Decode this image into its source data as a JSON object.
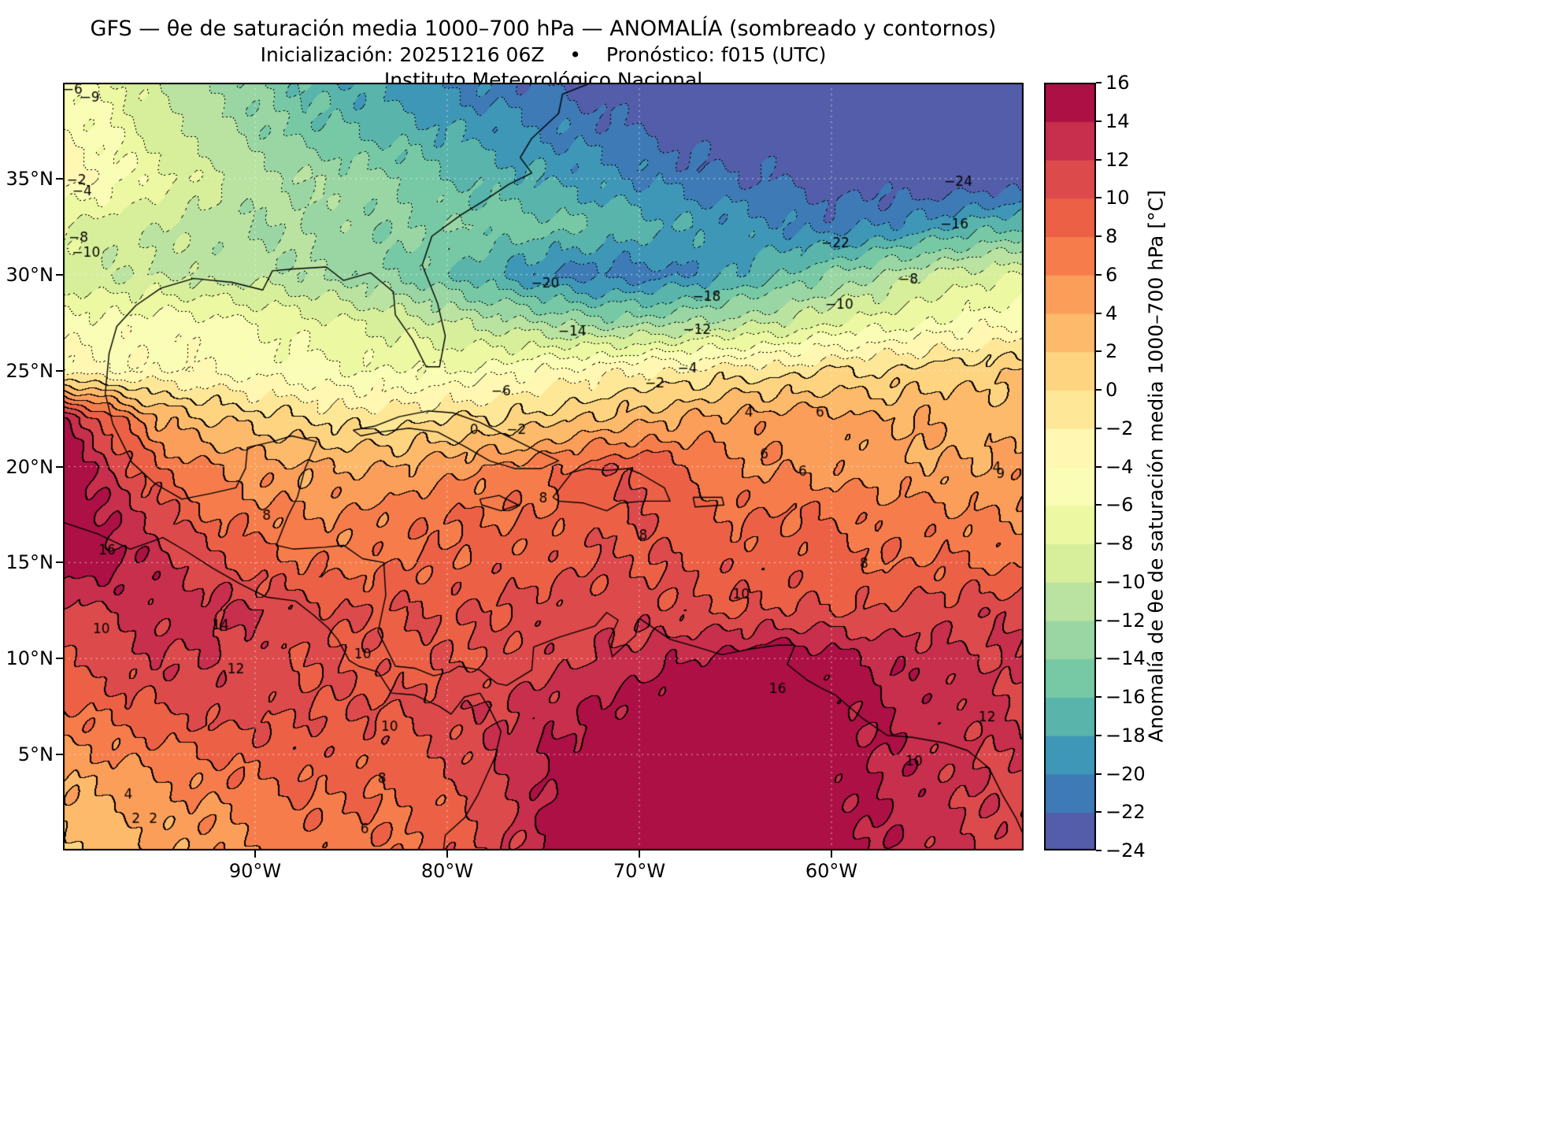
{
  "header": {
    "title_line1": "GFS — θe de saturación media 1000–700 hPa — ANOMALÍA (sombreado y contornos)",
    "title_line2": "Inicialización: 20251216 06Z    •    Pronóstico: f015 (UTC)",
    "title_line3": "Instituto Meteorológico Nacional"
  },
  "chart_data": {
    "type": "heatmap",
    "title": "GFS — θe de saturación media 1000–700 hPa — ANOMALÍA (sombreado y contornos)",
    "model": "GFS",
    "initialization": "20251216 06Z",
    "forecast": "f015 (UTC)",
    "institution": "Instituto Meteorológico Nacional",
    "x_axis": {
      "tick_labels": [
        "90°W",
        "80°W",
        "70°W",
        "60°W"
      ],
      "tick_lons": [
        -90,
        -80,
        -70,
        -60
      ],
      "lon_range": [
        -100,
        -50
      ]
    },
    "y_axis": {
      "tick_labels": [
        "35°N",
        "30°N",
        "25°N",
        "20°N",
        "15°N",
        "10°N",
        "5°N"
      ],
      "tick_lats": [
        35,
        30,
        25,
        20,
        15,
        10,
        5
      ],
      "lat_range": [
        0,
        40
      ]
    },
    "colorbar": {
      "label": "Anomalía de θe de saturación media 1000–700 hPa [°C]",
      "min": -24,
      "max": 16,
      "band_step": 2,
      "tick_values": [
        16,
        14,
        12,
        10,
        8,
        6,
        4,
        2,
        0,
        -2,
        -4,
        -6,
        -8,
        -10,
        -12,
        -14,
        -16,
        -18,
        -20,
        -22,
        -24
      ],
      "tick_labels": [
        "16",
        "14",
        "12",
        "10",
        "8",
        "6",
        "4",
        "2",
        "0",
        "−2",
        "−4",
        "−6",
        "−8",
        "−10",
        "−12",
        "−14",
        "−16",
        "−18",
        "−20",
        "−22",
        "−24"
      ],
      "colormap": "Spectral_r"
    },
    "colormap_anchors": [
      "#9e0142",
      "#d53e4f",
      "#f46d43",
      "#fdae61",
      "#fee08b",
      "#ffffbf",
      "#e6f598",
      "#abdda4",
      "#66c2a5",
      "#3288bd",
      "#5e4fa2"
    ],
    "contour_style": {
      "interval": 2,
      "positive_and_zero": "solid",
      "negative": "dotted",
      "line_color": "#000000"
    },
    "grid": {
      "lon_start": -100,
      "lon_step": 2.5,
      "lat_start": 40,
      "lat_step": -2.5,
      "units": "°C",
      "values": [
        [
          -5,
          -7,
          -10,
          -12,
          -14,
          -16,
          -18,
          -19,
          -20,
          -21,
          -22,
          -23,
          -24,
          -24,
          -24,
          -24,
          -24,
          -24,
          -24,
          -24,
          -24
        ],
        [
          -4,
          -6,
          -9,
          -11,
          -13,
          -15,
          -16,
          -17,
          -18,
          -19,
          -20,
          -21,
          -22,
          -23,
          -23,
          -24,
          -24,
          -24,
          -24,
          -24,
          -24
        ],
        [
          -3,
          -5,
          -7,
          -9,
          -11,
          -12,
          -13,
          -14,
          -16,
          -17,
          -18,
          -19,
          -20,
          -21,
          -22,
          -22,
          -23,
          -23,
          -24,
          -24,
          -24
        ],
        [
          -8,
          -9,
          -10,
          -11,
          -12,
          -12,
          -13,
          -14,
          -14,
          -15,
          -15,
          -16,
          -17,
          -18,
          -19,
          -20,
          -21,
          -20,
          -19,
          -17,
          -16
        ],
        [
          -9,
          -10,
          -10,
          -11,
          -11,
          -12,
          -13,
          -14,
          -16,
          -18,
          -20,
          -21,
          -21,
          -20,
          -18,
          -16,
          -14,
          -12,
          -10,
          -9,
          -8
        ],
        [
          -5,
          -5,
          -5,
          -5,
          -6,
          -7,
          -8,
          -9,
          -10,
          -11,
          -12,
          -13,
          -13,
          -12,
          -11,
          -10,
          -8,
          -7,
          -6,
          -5,
          -4
        ],
        [
          -3,
          -4,
          -4,
          -4,
          -5,
          -5,
          -6,
          -6,
          -6,
          -5,
          -4,
          -3,
          -2,
          -2,
          -1,
          -1,
          0,
          0,
          1,
          1,
          2
        ],
        [
          14,
          9,
          4,
          2,
          1,
          0,
          -1,
          -1,
          0,
          0,
          1,
          2,
          3,
          4,
          5,
          5,
          5,
          4,
          4,
          3,
          3
        ],
        [
          16,
          12,
          8,
          6,
          5,
          4,
          4,
          4,
          5,
          6,
          7,
          9,
          10,
          8,
          6,
          6,
          5,
          5,
          4,
          4,
          5
        ],
        [
          16,
          14,
          11,
          8,
          7,
          6,
          6,
          7,
          8,
          8,
          8,
          9,
          10,
          9,
          8,
          8,
          8,
          7,
          7,
          6,
          6
        ],
        [
          16,
          15,
          13,
          11,
          9,
          8,
          7,
          8,
          8,
          9,
          9,
          10,
          10,
          10,
          9,
          9,
          9,
          8,
          8,
          8,
          7
        ],
        [
          11,
          12,
          13,
          13,
          12,
          11,
          10,
          10,
          10,
          10,
          11,
          11,
          11,
          10,
          10,
          10,
          10,
          10,
          11,
          11,
          12
        ],
        [
          10,
          11,
          12,
          12,
          11,
          10,
          10,
          9,
          10,
          10,
          11,
          12,
          13,
          14,
          15,
          16,
          15,
          14,
          13,
          12,
          12
        ],
        [
          8,
          9,
          10,
          11,
          11,
          10,
          10,
          10,
          11,
          12,
          13,
          14,
          15,
          16,
          16,
          16,
          15,
          14,
          13,
          13,
          12
        ],
        [
          5,
          6,
          7,
          8,
          9,
          9,
          9,
          9,
          10,
          12,
          14,
          15,
          16,
          16,
          16,
          16,
          15,
          14,
          13,
          12,
          12
        ],
        [
          3,
          4,
          5,
          6,
          7,
          8,
          8,
          8,
          9,
          11,
          14,
          16,
          16,
          16,
          16,
          16,
          15,
          14,
          13,
          12,
          11
        ],
        [
          2,
          3,
          4,
          5,
          6,
          7,
          7,
          8,
          9,
          11,
          14,
          16,
          16,
          16,
          16,
          16,
          15,
          14,
          13,
          12,
          11
        ]
      ]
    },
    "contour_labels": [
      {
        "t": "−24",
        "lon": -53.4,
        "lat": 34.8
      },
      {
        "t": "−22",
        "lon": -59.8,
        "lat": 31.6
      },
      {
        "t": "−20",
        "lon": -74.9,
        "lat": 29.5
      },
      {
        "t": "−18",
        "lon": -66.5,
        "lat": 28.8
      },
      {
        "t": "−16",
        "lon": -53.6,
        "lat": 32.6
      },
      {
        "t": "−14",
        "lon": -73.5,
        "lat": 27.0
      },
      {
        "t": "−12",
        "lon": -67.0,
        "lat": 27.1
      },
      {
        "t": "−10",
        "lon": -59.6,
        "lat": 28.4
      },
      {
        "t": "−8",
        "lon": -56.0,
        "lat": 29.7
      },
      {
        "t": "−8",
        "lon": -99.2,
        "lat": 31.9
      },
      {
        "t": "−10",
        "lon": -98.8,
        "lat": 31.1
      },
      {
        "t": "−6",
        "lon": -77.2,
        "lat": 23.9
      },
      {
        "t": "−4",
        "lon": -67.5,
        "lat": 25.1
      },
      {
        "t": "−2",
        "lon": -69.2,
        "lat": 24.3
      },
      {
        "t": "−2",
        "lon": -99.3,
        "lat": 34.9
      },
      {
        "t": "−4",
        "lon": -99.0,
        "lat": 34.3
      },
      {
        "t": "−6",
        "lon": -99.5,
        "lat": 39.6
      },
      {
        "t": "−9",
        "lon": -98.6,
        "lat": 39.2
      },
      {
        "t": "0",
        "lon": -78.6,
        "lat": 21.9
      },
      {
        "t": "−2",
        "lon": -76.4,
        "lat": 21.9
      },
      {
        "t": "4",
        "lon": -64.3,
        "lat": 22.8
      },
      {
        "t": "6",
        "lon": -60.6,
        "lat": 22.8
      },
      {
        "t": "6",
        "lon": -63.5,
        "lat": 20.6
      },
      {
        "t": "6",
        "lon": -61.5,
        "lat": 19.7
      },
      {
        "t": "8",
        "lon": -75.0,
        "lat": 18.3
      },
      {
        "t": "8",
        "lon": -69.8,
        "lat": 16.4
      },
      {
        "t": "8",
        "lon": -89.4,
        "lat": 17.4
      },
      {
        "t": "8",
        "lon": -83.4,
        "lat": 3.7
      },
      {
        "t": "8",
        "lon": -58.3,
        "lat": 14.9
      },
      {
        "t": "9",
        "lon": -51.2,
        "lat": 19.6
      },
      {
        "t": "4",
        "lon": -51.4,
        "lat": 19.9
      },
      {
        "t": "10",
        "lon": -64.7,
        "lat": 13.3
      },
      {
        "t": "10",
        "lon": -98.0,
        "lat": 11.5
      },
      {
        "t": "10",
        "lon": -84.4,
        "lat": 10.2
      },
      {
        "t": "10",
        "lon": -83.0,
        "lat": 6.4
      },
      {
        "t": "10",
        "lon": -55.7,
        "lat": 4.6
      },
      {
        "t": "12",
        "lon": -91.0,
        "lat": 9.4
      },
      {
        "t": "12",
        "lon": -51.9,
        "lat": 6.9
      },
      {
        "t": "14",
        "lon": -91.8,
        "lat": 11.7
      },
      {
        "t": "16",
        "lon": -97.7,
        "lat": 15.6
      },
      {
        "t": "16",
        "lon": -62.8,
        "lat": 8.4
      },
      {
        "t": "2",
        "lon": -96.2,
        "lat": 1.6
      },
      {
        "t": "2",
        "lon": -95.3,
        "lat": 1.6
      },
      {
        "t": "4",
        "lon": -96.6,
        "lat": 2.9
      },
      {
        "t": "6",
        "lon": -84.3,
        "lat": 1.1
      }
    ],
    "coastlines": [
      [
        [
          -72.5,
          40
        ],
        [
          -74.0,
          39.4
        ],
        [
          -74.2,
          38.4
        ],
        [
          -75.6,
          37.1
        ],
        [
          -76.2,
          36.1
        ],
        [
          -75.6,
          35.3
        ],
        [
          -76.8,
          34.7
        ],
        [
          -78.0,
          33.9
        ],
        [
          -79.3,
          33.1
        ],
        [
          -80.8,
          32.0
        ],
        [
          -81.3,
          30.5
        ],
        [
          -80.5,
          28.5
        ],
        [
          -80.1,
          26.8
        ],
        [
          -80.4,
          25.2
        ],
        [
          -81.1,
          25.2
        ],
        [
          -81.8,
          26.6
        ],
        [
          -82.7,
          27.9
        ],
        [
          -82.8,
          29.1
        ],
        [
          -84.0,
          30.1
        ],
        [
          -85.4,
          29.7
        ],
        [
          -86.3,
          30.4
        ],
        [
          -88.0,
          30.3
        ],
        [
          -89.1,
          30.2
        ],
        [
          -89.6,
          29.2
        ],
        [
          -91.2,
          29.6
        ],
        [
          -93.2,
          29.8
        ],
        [
          -94.9,
          29.3
        ],
        [
          -96.2,
          28.4
        ],
        [
          -97.2,
          27.3
        ],
        [
          -97.6,
          25.9
        ],
        [
          -97.8,
          23.8
        ],
        [
          -97.4,
          22.2
        ],
        [
          -96.4,
          20.2
        ],
        [
          -95.2,
          19.1
        ],
        [
          -93.8,
          18.3
        ],
        [
          -92.3,
          18.6
        ],
        [
          -91.0,
          18.9
        ],
        [
          -90.5,
          19.9
        ],
        [
          -90.4,
          21.0
        ],
        [
          -89.1,
          21.3
        ],
        [
          -88.1,
          21.6
        ],
        [
          -86.8,
          21.3
        ],
        [
          -87.4,
          19.9
        ],
        [
          -87.8,
          18.4
        ],
        [
          -88.3,
          17.4
        ],
        [
          -88.9,
          15.9
        ],
        [
          -88.0,
          15.7
        ],
        [
          -86.4,
          15.8
        ],
        [
          -85.4,
          15.9
        ],
        [
          -84.4,
          15.2
        ],
        [
          -83.3,
          15.0
        ],
        [
          -83.2,
          13.3
        ],
        [
          -83.6,
          11.4
        ],
        [
          -82.7,
          9.6
        ],
        [
          -81.7,
          9.5
        ],
        [
          -80.7,
          9.1
        ],
        [
          -79.9,
          9.3
        ],
        [
          -79.4,
          9.6
        ],
        [
          -78.3,
          9.4
        ],
        [
          -77.4,
          8.7
        ],
        [
          -76.9,
          8.6
        ],
        [
          -75.6,
          9.4
        ],
        [
          -75.5,
          10.6
        ],
        [
          -74.2,
          11.1
        ],
        [
          -72.3,
          11.7
        ],
        [
          -71.7,
          12.4
        ],
        [
          -71.1,
          12.0
        ],
        [
          -71.6,
          10.9
        ],
        [
          -71.4,
          10.1
        ],
        [
          -70.2,
          11.2
        ],
        [
          -70.0,
          12.1
        ],
        [
          -68.4,
          11.0
        ],
        [
          -67.0,
          10.6
        ],
        [
          -65.7,
          10.2
        ],
        [
          -64.2,
          10.5
        ],
        [
          -62.8,
          10.7
        ],
        [
          -61.9,
          10.7
        ],
        [
          -62.3,
          9.7
        ],
        [
          -61.3,
          8.9
        ],
        [
          -60.6,
          8.5
        ],
        [
          -59.8,
          8.1
        ],
        [
          -58.4,
          6.9
        ],
        [
          -57.1,
          6.0
        ],
        [
          -55.8,
          5.9
        ],
        [
          -54.1,
          5.6
        ],
        [
          -52.9,
          5.2
        ],
        [
          -51.8,
          4.3
        ],
        [
          -51.1,
          2.9
        ],
        [
          -50.4,
          1.7
        ],
        [
          -50.0,
          0.8
        ]
      ],
      [
        [
          -100.0,
          17.1
        ],
        [
          -98.2,
          16.5
        ],
        [
          -96.5,
          15.7
        ],
        [
          -94.8,
          16.3
        ],
        [
          -93.6,
          15.6
        ],
        [
          -92.2,
          14.7
        ],
        [
          -90.8,
          13.9
        ],
        [
          -89.4,
          13.2
        ],
        [
          -87.9,
          13.0
        ],
        [
          -87.0,
          12.3
        ],
        [
          -86.2,
          11.6
        ],
        [
          -85.7,
          11.0
        ],
        [
          -85.1,
          9.9
        ],
        [
          -84.6,
          9.6
        ],
        [
          -83.6,
          9.3
        ],
        [
          -82.9,
          8.2
        ],
        [
          -81.7,
          8.1
        ],
        [
          -80.4,
          7.5
        ],
        [
          -79.8,
          7.1
        ],
        [
          -79.1,
          8.0
        ],
        [
          -78.3,
          8.2
        ],
        [
          -77.8,
          7.4
        ],
        [
          -77.2,
          6.2
        ],
        [
          -77.5,
          4.9
        ],
        [
          -78.4,
          2.9
        ],
        [
          -79.1,
          1.7
        ],
        [
          -80.1,
          0.8
        ],
        [
          -80.2,
          0.0
        ]
      ],
      [
        [
          -84.9,
          21.9
        ],
        [
          -83.8,
          22.1
        ],
        [
          -82.5,
          22.6
        ],
        [
          -81.0,
          22.9
        ],
        [
          -79.7,
          22.8
        ],
        [
          -78.3,
          22.3
        ],
        [
          -77.1,
          21.7
        ],
        [
          -75.7,
          21.0
        ],
        [
          -74.2,
          20.3
        ],
        [
          -75.1,
          19.9
        ],
        [
          -76.5,
          19.9
        ],
        [
          -77.8,
          20.3
        ],
        [
          -79.0,
          21.0
        ],
        [
          -80.5,
          21.8
        ],
        [
          -82.0,
          22.0
        ],
        [
          -83.5,
          21.8
        ],
        [
          -84.5,
          21.6
        ],
        [
          -84.9,
          21.9
        ]
      ],
      [
        [
          -74.5,
          18.4
        ],
        [
          -73.5,
          19.7
        ],
        [
          -72.7,
          19.9
        ],
        [
          -71.7,
          19.8
        ],
        [
          -70.6,
          19.9
        ],
        [
          -69.9,
          19.6
        ],
        [
          -68.7,
          18.9
        ],
        [
          -68.4,
          18.2
        ],
        [
          -69.7,
          18.2
        ],
        [
          -71.0,
          18.1
        ],
        [
          -71.7,
          17.7
        ],
        [
          -72.9,
          18.1
        ],
        [
          -74.2,
          18.2
        ],
        [
          -74.5,
          18.4
        ]
      ],
      [
        [
          -78.3,
          18.3
        ],
        [
          -77.3,
          18.5
        ],
        [
          -76.3,
          18.0
        ],
        [
          -77.2,
          17.7
        ],
        [
          -78.2,
          18.0
        ],
        [
          -78.3,
          18.3
        ]
      ],
      [
        [
          -67.2,
          18.4
        ],
        [
          -65.7,
          18.4
        ],
        [
          -65.6,
          18.0
        ],
        [
          -67.1,
          17.9
        ],
        [
          -67.2,
          18.4
        ]
      ]
    ]
  }
}
